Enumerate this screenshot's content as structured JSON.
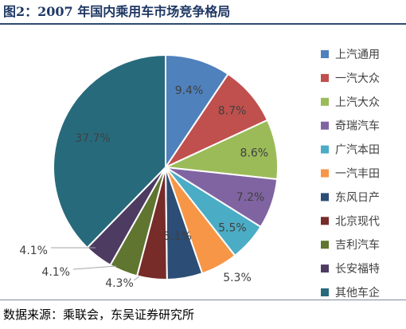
{
  "title": "图2：2007 年国内乘用车市场竞争格局",
  "source": "数据来源：乘联会，东吴证券研究所",
  "chart_data": {
    "type": "pie",
    "slices": [
      {
        "name": "上汽通用",
        "value": 9.4,
        "label": "9.4%",
        "color": "#4f81bd"
      },
      {
        "name": "一汽大众",
        "value": 8.7,
        "label": "8.7%",
        "color": "#c0504d"
      },
      {
        "name": "上汽大众",
        "value": 8.6,
        "label": "8.6%",
        "color": "#9bbb59"
      },
      {
        "name": "奇瑞汽车",
        "value": 7.2,
        "label": "7.2%",
        "color": "#8064a2"
      },
      {
        "name": "广汽本田",
        "value": 5.5,
        "label": "5.5%",
        "color": "#4bacc6"
      },
      {
        "name": "一汽丰田",
        "value": 5.3,
        "label": "5.3%",
        "color": "#f79646"
      },
      {
        "name": "东风日产",
        "value": 5.1,
        "label": "5.1%",
        "color": "#2c4d75"
      },
      {
        "name": "北京现代",
        "value": 4.3,
        "label": "4.3%",
        "color": "#772c2a"
      },
      {
        "name": "吉利汽车",
        "value": 4.1,
        "label": "4.1%",
        "color": "#5f7530"
      },
      {
        "name": "长安福特",
        "value": 4.1,
        "label": "4.1%",
        "color": "#4d3b62"
      },
      {
        "name": "其他车企",
        "value": 37.7,
        "label": "37.7%",
        "color": "#276a7c"
      }
    ],
    "legend_position": "right"
  }
}
